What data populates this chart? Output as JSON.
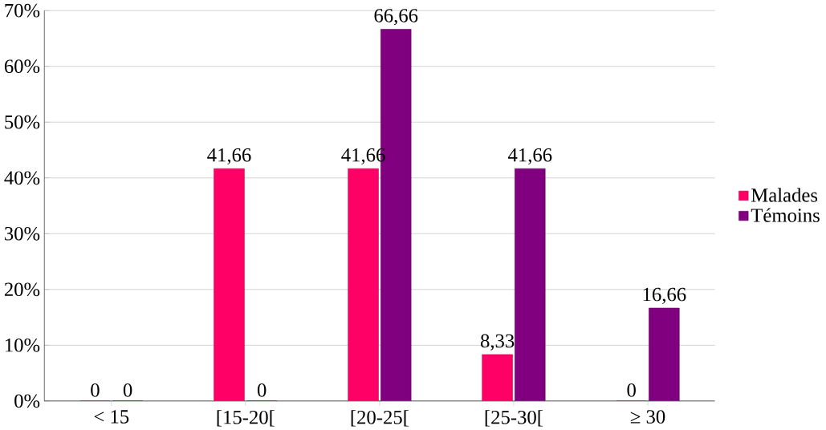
{
  "chart_data": {
    "type": "bar",
    "categories": [
      "< 15",
      "[15-20[",
      "[20-25[",
      "[25-30[",
      "≥ 30"
    ],
    "series": [
      {
        "name": "Malades",
        "color": "#ff0066",
        "values": [
          0,
          41.66,
          41.66,
          8.33,
          0
        ],
        "value_labels": [
          "0",
          "41,66",
          "41,66",
          "8,33",
          "0"
        ]
      },
      {
        "name": "Témoins",
        "color": "#800080",
        "values": [
          0,
          0,
          66.66,
          41.66,
          16.66
        ],
        "value_labels": [
          "0",
          "0",
          "66,66",
          "41,66",
          "16,66"
        ]
      }
    ],
    "ylim": [
      0,
      70
    ],
    "yticks": [
      {
        "value": 0,
        "label": "0%"
      },
      {
        "value": 10,
        "label": "10%"
      },
      {
        "value": 20,
        "label": "20%"
      },
      {
        "value": 30,
        "label": "30%"
      },
      {
        "value": 40,
        "label": "40%"
      },
      {
        "value": 50,
        "label": "50%"
      },
      {
        "value": 60,
        "label": "60%"
      },
      {
        "value": 70,
        "label": "70%"
      }
    ],
    "grid": "y",
    "legend": "right"
  }
}
